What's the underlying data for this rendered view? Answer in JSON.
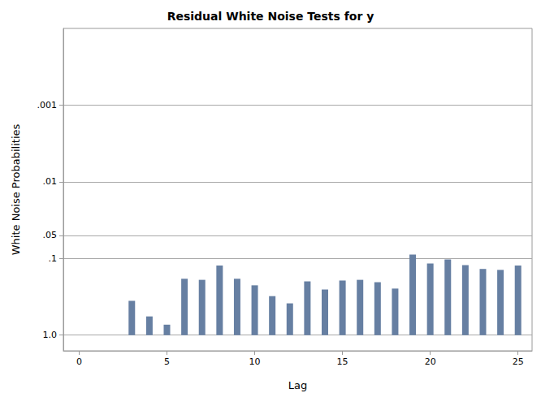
{
  "chart_data": {
    "type": "bar",
    "title": "Residual White Noise Tests for y",
    "x_label": "Lag",
    "y_label": "White Noise Probabilities",
    "x": [
      3,
      4,
      5,
      6,
      7,
      8,
      9,
      10,
      11,
      12,
      13,
      14,
      15,
      16,
      17,
      18,
      19,
      20,
      21,
      22,
      23,
      24,
      25
    ],
    "values": [
      0.357,
      0.57,
      0.73,
      0.184,
      0.19,
      0.124,
      0.184,
      0.224,
      0.31,
      0.385,
      0.199,
      0.254,
      0.194,
      0.19,
      0.204,
      0.247,
      0.089,
      0.116,
      0.103,
      0.122,
      0.137,
      0.141,
      0.124
    ],
    "color": "#667fa2",
    "xlim": [
      -0.9,
      25.8
    ],
    "xticks": [
      0,
      5,
      10,
      15,
      20,
      25
    ],
    "ylim": [
      0.0001,
      1.6
    ],
    "yticks": [
      {
        "value": 0.001,
        "label": ".001"
      },
      {
        "value": 0.01,
        "label": ".01"
      },
      {
        "value": 0.05,
        "label": ".05"
      },
      {
        "value": 0.1,
        "label": ".1"
      },
      {
        "value": 1,
        "label": "1.0"
      }
    ],
    "log": "y",
    "grid": true
  }
}
